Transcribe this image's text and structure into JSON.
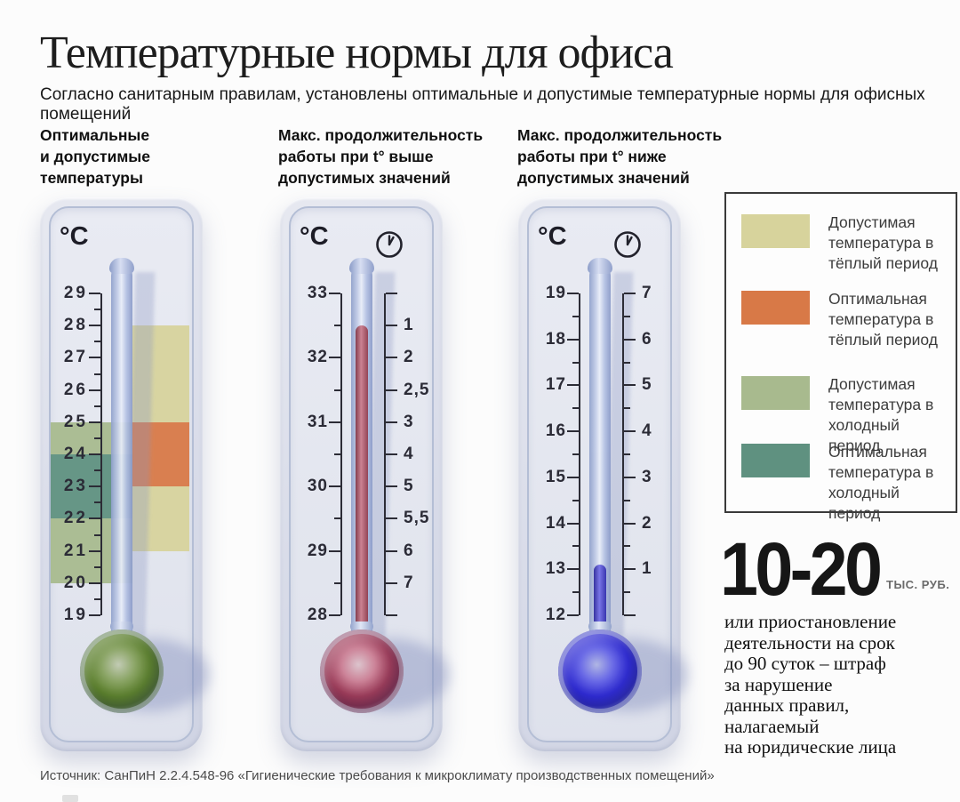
{
  "page": {
    "background": "#fcfcfc"
  },
  "header": {
    "title": "Температурные нормы для офиса",
    "subtitle": "Согласно санитарным правилам, установлены оптимальные и допустимые температурные нормы для офисных помещений"
  },
  "columns": [
    {
      "heading": "Оптимальные\nи допустимые\nтемпературы"
    },
    {
      "heading": "Макс. продолжительность\nработы при t° выше\nдопустимых значений"
    },
    {
      "heading": "Макс. продолжительность\nработы при t° ниже\nдопустимых значений"
    }
  ],
  "colors": {
    "allowed_warm": "#d7d39c",
    "optimal_warm": "#d87947",
    "allowed_cold": "#a8ba8e",
    "optimal_cold": "#5f9180",
    "fluid_red": "#b5485f",
    "fluid_blue": "#3a35dc",
    "bulb_green": "#4f7224",
    "bulb_red": "#8c2f4a",
    "bulb_blue": "#2523cb"
  },
  "chart_data": [
    {
      "type": "thermometer-range",
      "title": "Оптимальные и допустимые температуры",
      "unit": "°C",
      "clock": false,
      "scale": {
        "min": 19,
        "max": 29,
        "tick_step": 1,
        "minor_step": 0.5
      },
      "left_labels": [
        {
          "v": 29,
          "text": "29"
        },
        {
          "v": 28,
          "text": "28"
        },
        {
          "v": 27,
          "text": "27"
        },
        {
          "v": 26,
          "text": "26"
        },
        {
          "v": 25,
          "text": "25"
        },
        {
          "v": 24,
          "text": "24"
        },
        {
          "v": 23,
          "text": "23"
        },
        {
          "v": 22,
          "text": "22"
        },
        {
          "v": 21,
          "text": "21"
        },
        {
          "v": 20,
          "text": "20"
        },
        {
          "v": 19,
          "text": "19"
        }
      ],
      "right_labels": [],
      "ranges": [
        {
          "name": "Допустимая температура в тёплый период",
          "from": 21,
          "to": 28
        },
        {
          "name": "Оптимальная температура в тёплый период",
          "from": 23,
          "to": 25
        },
        {
          "name": "Допустимая температура в холодный период",
          "from": 20,
          "to": 25
        },
        {
          "name": "Оптимальная температура в холодный период",
          "from": 22,
          "to": 24
        }
      ],
      "zones": [
        {
          "side": "right",
          "from": 28,
          "to": 25,
          "color": "allowed_warm"
        },
        {
          "side": "right",
          "from": 25,
          "to": 23,
          "color": "optimal_warm"
        },
        {
          "side": "right",
          "from": 23,
          "to": 21,
          "color": "allowed_warm"
        },
        {
          "side": "left",
          "from": 25,
          "to": 24,
          "color": "allowed_cold"
        },
        {
          "side": "left",
          "from": 24,
          "to": 22,
          "color": "optimal_cold"
        },
        {
          "side": "left",
          "from": 22,
          "to": 20,
          "color": "allowed_cold"
        }
      ],
      "fluid": null,
      "bulb_color": "bulb_green"
    },
    {
      "type": "thermometer-lookup",
      "title": "Макс. продолжительность работы при t° выше допустимых значений",
      "unit": "°C",
      "unit_right": "часы работы",
      "clock": true,
      "scale": {
        "min": 28,
        "max": 33,
        "tick_step": 1,
        "minor_step": 0.5
      },
      "left_labels": [
        {
          "v": 33,
          "text": "33"
        },
        {
          "v": 32,
          "text": "32"
        },
        {
          "v": 31,
          "text": "31"
        },
        {
          "v": 30,
          "text": "30"
        },
        {
          "v": 29,
          "text": "29"
        },
        {
          "v": 28,
          "text": "28"
        }
      ],
      "right_labels": [
        {
          "v": 32.5,
          "text": "1"
        },
        {
          "v": 32,
          "text": "2"
        },
        {
          "v": 31.5,
          "text": "2,5"
        },
        {
          "v": 31,
          "text": "3"
        },
        {
          "v": 30.5,
          "text": "4"
        },
        {
          "v": 30,
          "text": "5"
        },
        {
          "v": 29.5,
          "text": "5,5"
        },
        {
          "v": 29,
          "text": "6"
        },
        {
          "v": 28.5,
          "text": "7"
        }
      ],
      "pairs": [
        [
          32.5,
          1
        ],
        [
          32,
          2
        ],
        [
          31.5,
          2.5
        ],
        [
          31,
          3
        ],
        [
          30.5,
          4
        ],
        [
          30,
          5
        ],
        [
          29.5,
          5.5
        ],
        [
          29,
          6
        ],
        [
          28.5,
          7
        ]
      ],
      "indicated_temp": 32.5,
      "zones": [],
      "fluid": {
        "top_temp": 32.5,
        "color": "fluid_red"
      },
      "bulb_color": "bulb_red"
    },
    {
      "type": "thermometer-lookup",
      "title": "Макс. продолжительность работы при t° ниже допустимых значений",
      "unit": "°C",
      "unit_right": "часы работы",
      "clock": true,
      "scale": {
        "min": 12,
        "max": 19,
        "tick_step": 1,
        "minor_step": 0.5
      },
      "left_labels": [
        {
          "v": 19,
          "text": "19"
        },
        {
          "v": 18,
          "text": "18"
        },
        {
          "v": 17,
          "text": "17"
        },
        {
          "v": 16,
          "text": "16"
        },
        {
          "v": 15,
          "text": "15"
        },
        {
          "v": 14,
          "text": "14"
        },
        {
          "v": 13,
          "text": "13"
        },
        {
          "v": 12,
          "text": "12"
        }
      ],
      "right_labels": [
        {
          "v": 19,
          "text": "7"
        },
        {
          "v": 18,
          "text": "6"
        },
        {
          "v": 17,
          "text": "5"
        },
        {
          "v": 16,
          "text": "4"
        },
        {
          "v": 15,
          "text": "3"
        },
        {
          "v": 14,
          "text": "2"
        },
        {
          "v": 13,
          "text": "1"
        }
      ],
      "pairs": [
        [
          19,
          7
        ],
        [
          18,
          6
        ],
        [
          17,
          5
        ],
        [
          16,
          4
        ],
        [
          15,
          3
        ],
        [
          14,
          2
        ],
        [
          13,
          1
        ]
      ],
      "indicated_temp": 13,
      "zones": [],
      "fluid": {
        "top_temp": 13.1,
        "color": "fluid_blue"
      },
      "bulb_color": "bulb_blue"
    }
  ],
  "legend": {
    "items": [
      {
        "color": "allowed_warm",
        "label": "Допустимая температура в тёплый период"
      },
      {
        "color": "optimal_warm",
        "label": "Оптимальная температура в тёплый период"
      },
      {
        "color": "allowed_cold",
        "label": "Допустимая температура в холодный период"
      },
      {
        "color": "optimal_cold",
        "label": "Оптимальная температура в холодный период"
      }
    ]
  },
  "fine": {
    "amount": "10-20",
    "unit": "ТЫС. РУБ.",
    "text": "или приостановление\nдеятельности на срок\nдо 90 суток – штраф\nза нарушение\nданных правил,\nналагаемый\nна юридические лица"
  },
  "footer": {
    "source": "Источник: СанПиН 2.2.4.548-96 «Гигиенические требования к микроклимату производственных помещений»"
  }
}
